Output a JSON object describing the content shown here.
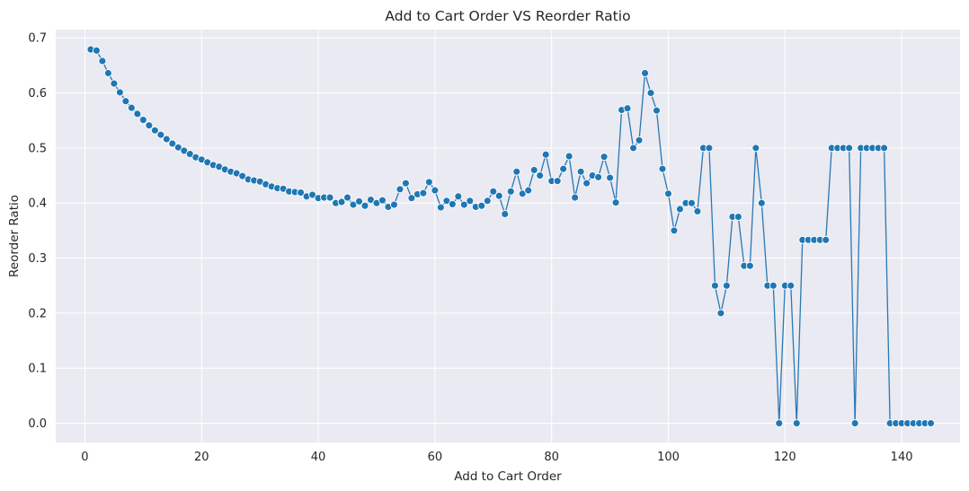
{
  "chart_data": {
    "type": "line",
    "title": "Add to Cart Order VS Reorder Ratio",
    "xlabel": "Add to Cart Order",
    "ylabel": "Reorder Ratio",
    "xlim": [
      -5,
      150
    ],
    "ylim": [
      -0.035,
      0.715
    ],
    "xticks": [
      0,
      20,
      40,
      60,
      80,
      100,
      120,
      140
    ],
    "yticks": [
      0.0,
      0.1,
      0.2,
      0.3,
      0.4,
      0.5,
      0.6,
      0.7
    ],
    "grid": true,
    "marker": "circle",
    "colors": {
      "line": "#2a78b5",
      "marker": "#1f77b4",
      "plot_background": "#eaeaf2",
      "grid": "#ffffff"
    },
    "x": [
      1,
      2,
      3,
      4,
      5,
      6,
      7,
      8,
      9,
      10,
      11,
      12,
      13,
      14,
      15,
      16,
      17,
      18,
      19,
      20,
      21,
      22,
      23,
      24,
      25,
      26,
      27,
      28,
      29,
      30,
      31,
      32,
      33,
      34,
      35,
      36,
      37,
      38,
      39,
      40,
      41,
      42,
      43,
      44,
      45,
      46,
      47,
      48,
      49,
      50,
      51,
      52,
      53,
      54,
      55,
      56,
      57,
      58,
      59,
      60,
      61,
      62,
      63,
      64,
      65,
      66,
      67,
      68,
      69,
      70,
      71,
      72,
      73,
      74,
      75,
      76,
      77,
      78,
      79,
      80,
      81,
      82,
      83,
      84,
      85,
      86,
      87,
      88,
      89,
      90,
      91,
      92,
      93,
      94,
      95,
      96,
      97,
      98,
      99,
      100,
      101,
      102,
      103,
      104,
      105,
      106,
      107,
      108,
      109,
      110,
      111,
      112,
      113,
      114,
      115,
      116,
      117,
      118,
      119,
      120,
      121,
      122,
      123,
      124,
      125,
      126,
      127,
      128,
      129,
      130,
      131,
      132,
      133,
      134,
      135,
      136,
      137,
      138,
      139,
      140,
      141,
      142,
      143,
      144,
      145
    ],
    "y": [
      0.679,
      0.677,
      0.658,
      0.636,
      0.617,
      0.601,
      0.585,
      0.573,
      0.562,
      0.551,
      0.541,
      0.532,
      0.524,
      0.516,
      0.508,
      0.501,
      0.495,
      0.489,
      0.483,
      0.479,
      0.474,
      0.469,
      0.466,
      0.461,
      0.457,
      0.454,
      0.449,
      0.443,
      0.441,
      0.439,
      0.434,
      0.43,
      0.427,
      0.426,
      0.421,
      0.42,
      0.419,
      0.412,
      0.415,
      0.409,
      0.41,
      0.41,
      0.4,
      0.402,
      0.41,
      0.397,
      0.403,
      0.395,
      0.406,
      0.4,
      0.405,
      0.393,
      0.397,
      0.425,
      0.436,
      0.409,
      0.416,
      0.418,
      0.438,
      0.423,
      0.392,
      0.404,
      0.398,
      0.412,
      0.397,
      0.404,
      0.393,
      0.395,
      0.404,
      0.421,
      0.413,
      0.38,
      0.421,
      0.457,
      0.417,
      0.423,
      0.46,
      0.45,
      0.488,
      0.44,
      0.44,
      0.462,
      0.485,
      0.41,
      0.457,
      0.436,
      0.45,
      0.447,
      0.484,
      0.446,
      0.401,
      0.569,
      0.572,
      0.5,
      0.514,
      0.636,
      0.6,
      0.568,
      0.462,
      0.417,
      0.35,
      0.389,
      0.4,
      0.4,
      0.385,
      0.5,
      0.5,
      0.25,
      0.2,
      0.25,
      0.375,
      0.375,
      0.286,
      0.286,
      0.5,
      0.4,
      0.25,
      0.25,
      0.0,
      0.25,
      0.25,
      0.0,
      0.333,
      0.333,
      0.333,
      0.333,
      0.333,
      0.5,
      0.5,
      0.5,
      0.5,
      0.0,
      0.5,
      0.5,
      0.5,
      0.5,
      0.5,
      0.0,
      0.0,
      0.0,
      0.0,
      0.0,
      0.0,
      0.0,
      0.0
    ]
  }
}
